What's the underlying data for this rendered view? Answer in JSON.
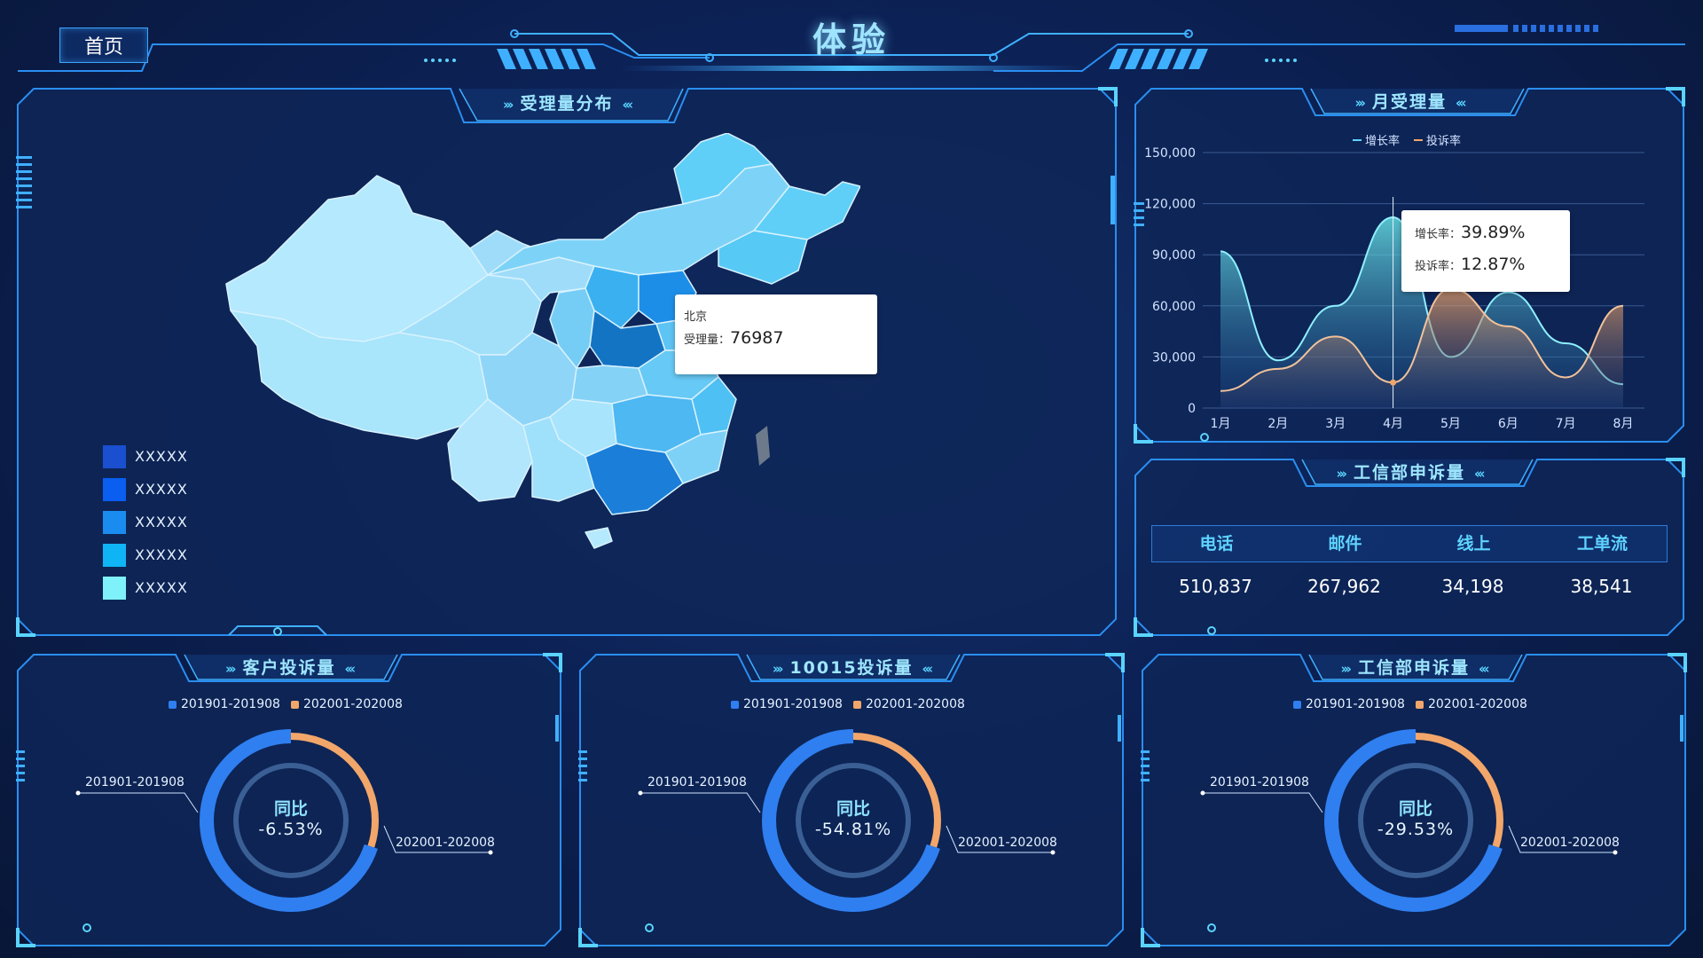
{
  "header": {
    "home_label": "首页",
    "title": "体验"
  },
  "colors": {
    "accent": "#3ca6ff",
    "cyan": "#5fd3ff",
    "orange": "#f2a66a",
    "blue_ring": "#2f7ff0",
    "panel_bg": "#0e2657"
  },
  "map_panel": {
    "title": "受理量分布",
    "legend": [
      {
        "label": "XXXXX",
        "color": "#1a4fd0"
      },
      {
        "label": "XXXXX",
        "color": "#0a5ef0"
      },
      {
        "label": "XXXXX",
        "color": "#1a8cf0"
      },
      {
        "label": "XXXXX",
        "color": "#0fb4f5"
      },
      {
        "label": "XXXXX",
        "color": "#7ff1fb"
      }
    ],
    "tooltip": {
      "region": "北京",
      "metric_label": "受理量：",
      "value": "76987"
    }
  },
  "monthly_panel": {
    "title": "月受理量",
    "legend": [
      {
        "name": "增长率",
        "color": "#5fd3ff"
      },
      {
        "name": "投诉率",
        "color": "#f2a66a"
      }
    ],
    "tooltip": {
      "line1_label": "增长率：",
      "line1_value": "39.89%",
      "line2_label": "投诉率：",
      "line2_value": "12.87%"
    }
  },
  "chart_data": {
    "type": "area",
    "categories": [
      "1月",
      "2月",
      "3月",
      "4月",
      "5月",
      "6月",
      "7月",
      "8月"
    ],
    "y_ticks": [
      "0",
      "30,000",
      "60,000",
      "90,000",
      "120,000",
      "150,000"
    ],
    "ylim": [
      0,
      150000
    ],
    "grid": true,
    "legend": "top",
    "series": [
      {
        "name": "增长率",
        "values": [
          92000,
          28000,
          60000,
          112000,
          30000,
          68000,
          38000,
          14000
        ]
      },
      {
        "name": "投诉率",
        "values": [
          10000,
          23000,
          42000,
          15000,
          70000,
          48000,
          18000,
          60000
        ]
      }
    ]
  },
  "miit_table": {
    "title": "工信部申诉量",
    "headers": [
      "电话",
      "邮件",
      "线上",
      "工单流"
    ],
    "values": [
      "510,837",
      "267,962",
      "34,198",
      "38,541"
    ]
  },
  "donuts": [
    {
      "title": "客户投诉量",
      "legend_a": "201901-201908",
      "legend_b": "202001-202008",
      "center_title": "同比",
      "center_value": "-6.53%",
      "label_a": "201901-201908",
      "label_b": "202001-202008",
      "a_fraction": 0.7
    },
    {
      "title": "10015投诉量",
      "legend_a": "201901-201908",
      "legend_b": "202001-202008",
      "center_title": "同比",
      "center_value": "-54.81%",
      "label_a": "201901-201908",
      "label_b": "202001-202008",
      "a_fraction": 0.7
    },
    {
      "title": "工信部申诉量",
      "legend_a": "201901-201908",
      "legend_b": "202001-202008",
      "center_title": "同比",
      "center_value": "-29.53%",
      "label_a": "201901-201908",
      "label_b": "202001-202008",
      "a_fraction": 0.7
    }
  ]
}
